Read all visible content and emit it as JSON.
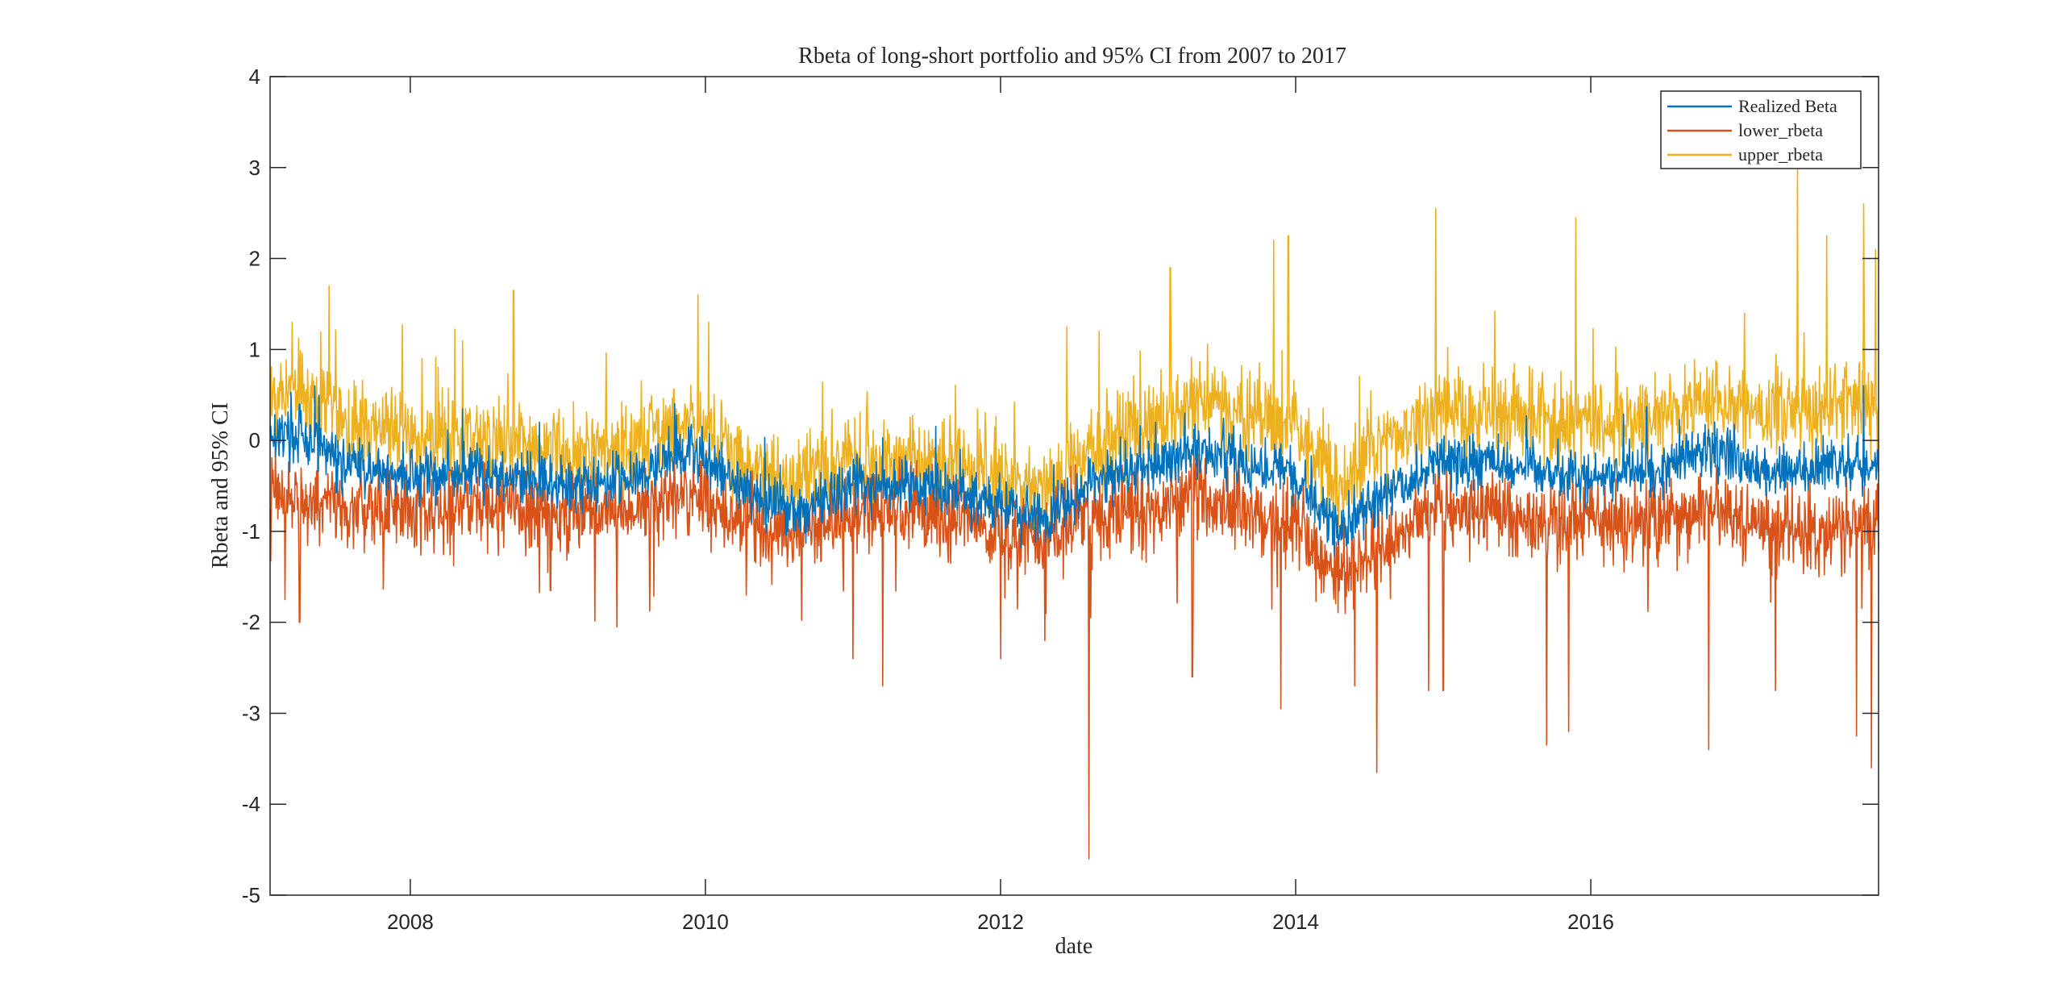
{
  "chart_data": {
    "type": "line",
    "title": "Rbeta of long-short portfolio and 95% CI from 2007 to 2017",
    "xlabel": "date",
    "ylabel": "Rbeta and 95% CI",
    "xlim": [
      2007.05,
      2017.95
    ],
    "ylim": [
      -5,
      4
    ],
    "xticks": [
      2008,
      2010,
      2012,
      2014,
      2016
    ],
    "xtick_labels": [
      "2008",
      "2010",
      "2012",
      "2014",
      "2016"
    ],
    "yticks": [
      -5,
      -4,
      -3,
      -2,
      -1,
      0,
      1,
      2,
      3,
      4
    ],
    "ytick_labels": [
      "-5",
      "-4",
      "-3",
      "-2",
      "-1",
      "0",
      "1",
      "2",
      "3",
      "4"
    ],
    "grid": false,
    "legend_position": "top-right",
    "x_start": 2007.05,
    "x_end": 2017.95,
    "series": [
      {
        "name": "Realized Beta",
        "color": "#0072BD",
        "anchors_x": [
          2007.05,
          2007.3,
          2007.6,
          2008.0,
          2008.5,
          2009.0,
          2009.5,
          2009.9,
          2010.3,
          2010.6,
          2011.0,
          2011.5,
          2012.0,
          2012.3,
          2012.6,
          2013.0,
          2013.3,
          2013.7,
          2014.0,
          2014.3,
          2014.6,
          2015.0,
          2015.5,
          2016.0,
          2016.5,
          2016.8,
          2017.2,
          2017.6,
          2017.95
        ],
        "anchors_y": [
          0.1,
          0.0,
          -0.3,
          -0.4,
          -0.35,
          -0.5,
          -0.4,
          -0.1,
          -0.6,
          -0.8,
          -0.5,
          -0.5,
          -0.7,
          -0.9,
          -0.5,
          -0.3,
          -0.1,
          -0.3,
          -0.4,
          -1.0,
          -0.6,
          -0.2,
          -0.3,
          -0.4,
          -0.3,
          -0.1,
          -0.4,
          -0.3,
          -0.3
        ],
        "noise": 0.18,
        "spikes_x": [
          2007.25,
          2013.25,
          2017.85
        ],
        "spikes_y": [
          0.4,
          0.3,
          0.6
        ]
      },
      {
        "name": "lower_rbeta",
        "color": "#D95319",
        "anchors_x": [
          2007.05,
          2007.3,
          2007.6,
          2008.0,
          2008.5,
          2009.0,
          2009.5,
          2009.9,
          2010.3,
          2010.6,
          2011.0,
          2011.5,
          2012.0,
          2012.3,
          2012.6,
          2013.0,
          2013.3,
          2013.7,
          2014.0,
          2014.3,
          2014.6,
          2015.0,
          2015.5,
          2016.0,
          2016.5,
          2016.8,
          2017.2,
          2017.6,
          2017.95
        ],
        "anchors_y": [
          -0.5,
          -0.7,
          -0.75,
          -0.75,
          -0.7,
          -0.8,
          -0.8,
          -0.55,
          -0.9,
          -1.0,
          -0.8,
          -0.8,
          -1.0,
          -1.1,
          -0.8,
          -0.8,
          -0.6,
          -0.8,
          -0.9,
          -1.5,
          -1.1,
          -0.7,
          -0.8,
          -0.9,
          -0.9,
          -0.7,
          -1.0,
          -1.0,
          -0.9
        ],
        "noise": 0.28,
        "spikes_x": [
          2007.15,
          2007.25,
          2008.95,
          2009.4,
          2011.0,
          2011.2,
          2012.0,
          2012.3,
          2012.6,
          2013.3,
          2013.9,
          2014.4,
          2014.55,
          2014.9,
          2015.0,
          2015.7,
          2015.85,
          2016.8,
          2017.25,
          2017.8,
          2017.9
        ],
        "spikes_y": [
          -1.75,
          -2.0,
          -1.65,
          -2.05,
          -2.4,
          -2.7,
          -2.4,
          -2.2,
          -4.6,
          -2.6,
          -2.95,
          -2.7,
          -3.65,
          -2.75,
          -2.75,
          -3.35,
          -3.2,
          -3.4,
          -2.75,
          -3.25,
          -3.6
        ]
      },
      {
        "name": "upper_rbeta",
        "color": "#EDB120",
        "anchors_x": [
          2007.05,
          2007.3,
          2007.6,
          2008.0,
          2008.5,
          2009.0,
          2009.5,
          2009.9,
          2010.3,
          2010.6,
          2011.0,
          2011.5,
          2012.0,
          2012.3,
          2012.6,
          2013.0,
          2013.3,
          2013.7,
          2014.0,
          2014.3,
          2014.6,
          2015.0,
          2015.5,
          2016.0,
          2016.5,
          2016.8,
          2017.2,
          2017.6,
          2017.95
        ],
        "anchors_y": [
          0.6,
          0.5,
          0.2,
          0.05,
          0.0,
          -0.15,
          -0.05,
          0.3,
          -0.3,
          -0.5,
          -0.2,
          -0.2,
          -0.4,
          -0.6,
          -0.1,
          0.2,
          0.4,
          0.25,
          0.1,
          -0.5,
          -0.05,
          0.3,
          0.25,
          0.15,
          0.25,
          0.45,
          0.25,
          0.4,
          0.4
        ],
        "noise": 0.3,
        "spikes_x": [
          2007.2,
          2007.45,
          2008.7,
          2009.95,
          2012.45,
          2013.15,
          2013.85,
          2013.95,
          2014.95,
          2015.9,
          2017.4,
          2017.6,
          2017.85,
          2017.93
        ],
        "spikes_y": [
          1.3,
          1.7,
          1.65,
          1.6,
          1.25,
          1.9,
          2.2,
          2.25,
          2.55,
          2.45,
          3.1,
          2.25,
          2.6,
          2.1
        ]
      }
    ]
  }
}
